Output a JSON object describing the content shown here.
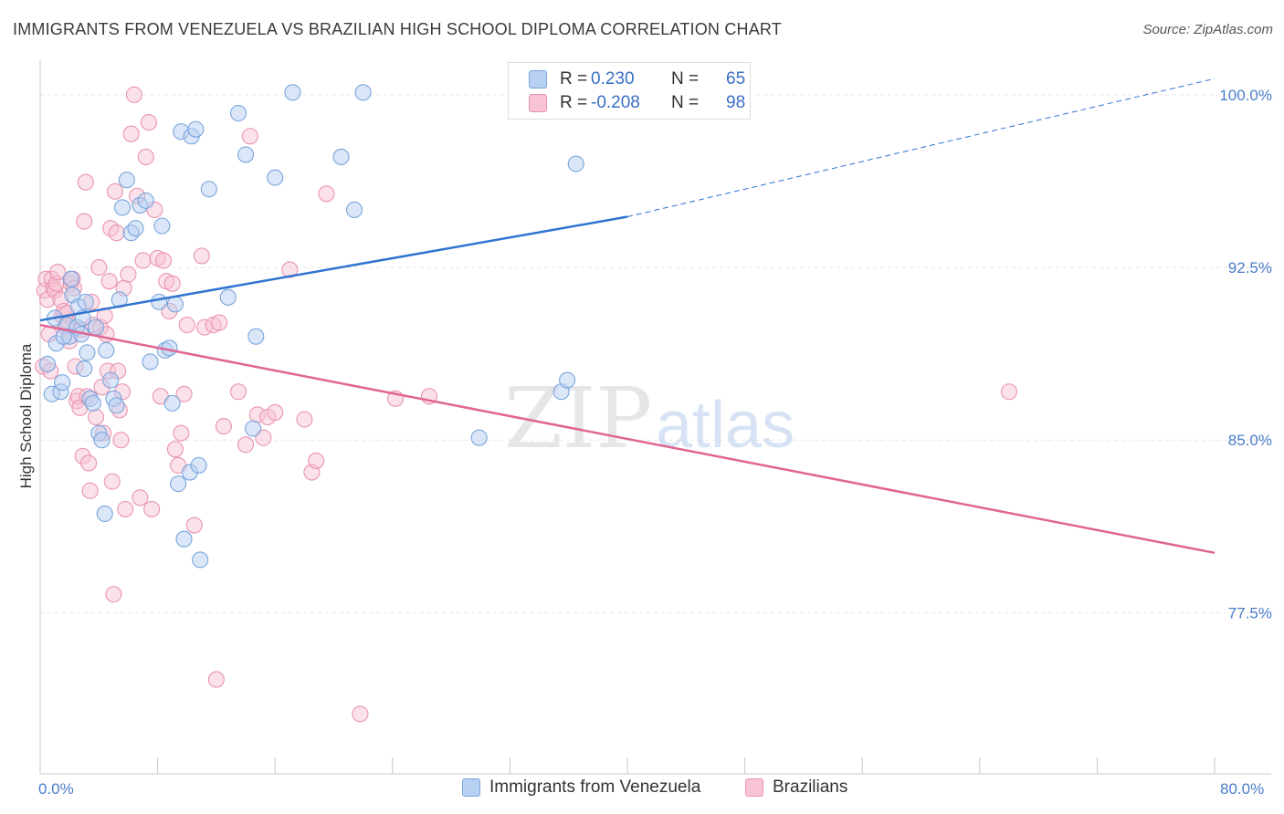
{
  "title": "IMMIGRANTS FROM VENEZUELA VS BRAZILIAN HIGH SCHOOL DIPLOMA CORRELATION CHART",
  "source": "Source: ZipAtlas.com",
  "watermark": {
    "zip": "ZIP",
    "atlas": "atlas"
  },
  "legend": {
    "r_label": "R =",
    "n_label": "N =",
    "series": [
      {
        "name": "Immigrants from Venezuela",
        "r": "0.230",
        "n": "65"
      },
      {
        "name": "Brazilians",
        "r": "-0.208",
        "n": "98"
      }
    ]
  },
  "colors": {
    "blue_fill": "#b8d0f2",
    "blue_stroke": "#7aa5dc",
    "blue_line": "#2f74d0",
    "pink_fill": "#f8c3d3",
    "pink_stroke": "#ea94b1",
    "pink_line": "#e06592",
    "axis_text": "#4a7cc9",
    "grid": "#e6e6e6"
  },
  "chart_data": {
    "type": "scatter",
    "title": "IMMIGRANTS FROM VENEZUELA VS BRAZILIAN HIGH SCHOOL DIPLOMA CORRELATION CHART",
    "xlabel": "",
    "ylabel": "High School Diploma",
    "xlim": [
      0,
      80
    ],
    "ylim": [
      70.5,
      101.5
    ],
    "x_tick_labels": [
      "0.0%",
      "80.0%"
    ],
    "y_ticks": [
      77.5,
      85.0,
      92.5,
      100.0
    ],
    "y_tick_labels": [
      "77.5%",
      "85.0%",
      "92.5%",
      "100.0%"
    ],
    "grid": true,
    "series": [
      {
        "name": "Immigrants from Venezuela",
        "r": 0.23,
        "n": 65,
        "trend": {
          "x0": 0,
          "y0": 90.2,
          "x1": 40,
          "y1": 94.7,
          "dashed_to_x": 80,
          "dashed_to_y": 100.7
        },
        "points": [
          [
            0.5,
            88.3
          ],
          [
            0.8,
            87.0
          ],
          [
            1.0,
            90.3
          ],
          [
            1.1,
            89.2
          ],
          [
            1.4,
            87.1
          ],
          [
            1.5,
            87.5
          ],
          [
            1.8,
            90.0
          ],
          [
            2.0,
            89.5
          ],
          [
            2.2,
            91.3
          ],
          [
            2.5,
            89.9
          ],
          [
            2.6,
            90.8
          ],
          [
            2.8,
            89.6
          ],
          [
            3.0,
            88.1
          ],
          [
            3.1,
            91.0
          ],
          [
            3.2,
            88.8
          ],
          [
            3.4,
            86.8
          ],
          [
            3.6,
            86.6
          ],
          [
            3.8,
            89.9
          ],
          [
            4.0,
            85.3
          ],
          [
            4.2,
            85.0
          ],
          [
            4.5,
            88.9
          ],
          [
            4.8,
            87.6
          ],
          [
            5.0,
            86.8
          ],
          [
            5.2,
            86.5
          ],
          [
            5.4,
            91.1
          ],
          [
            5.6,
            95.1
          ],
          [
            5.9,
            96.3
          ],
          [
            6.2,
            94.0
          ],
          [
            6.5,
            94.2
          ],
          [
            6.8,
            95.2
          ],
          [
            7.2,
            95.4
          ],
          [
            7.5,
            88.4
          ],
          [
            8.1,
            91.0
          ],
          [
            8.3,
            94.3
          ],
          [
            8.5,
            88.9
          ],
          [
            8.8,
            89.0
          ],
          [
            9.0,
            86.6
          ],
          [
            9.2,
            90.9
          ],
          [
            9.4,
            83.1
          ],
          [
            9.6,
            98.4
          ],
          [
            9.8,
            80.7
          ],
          [
            10.2,
            83.6
          ],
          [
            10.3,
            98.2
          ],
          [
            10.6,
            98.5
          ],
          [
            10.8,
            83.9
          ],
          [
            10.9,
            79.8
          ],
          [
            11.5,
            95.9
          ],
          [
            12.8,
            91.2
          ],
          [
            13.5,
            99.2
          ],
          [
            14.0,
            97.4
          ],
          [
            14.5,
            85.5
          ],
          [
            14.7,
            89.5
          ],
          [
            16.0,
            96.4
          ],
          [
            17.2,
            100.1
          ],
          [
            20.5,
            97.3
          ],
          [
            21.4,
            95.0
          ],
          [
            22.0,
            100.1
          ],
          [
            29.9,
            85.1
          ],
          [
            35.5,
            87.1
          ],
          [
            35.9,
            87.6
          ],
          [
            36.5,
            97.0
          ],
          [
            2.9,
            90.3
          ],
          [
            4.4,
            81.8
          ],
          [
            2.1,
            92.0
          ],
          [
            1.6,
            89.5
          ]
        ]
      },
      {
        "name": "Brazilians",
        "r": -0.208,
        "n": 98,
        "trend": {
          "x0": 0,
          "y0": 90.0,
          "x1": 80,
          "y1": 80.1
        },
        "points": [
          [
            0.2,
            88.2
          ],
          [
            0.3,
            91.5
          ],
          [
            0.4,
            92.0
          ],
          [
            0.5,
            91.1
          ],
          [
            0.6,
            89.6
          ],
          [
            0.7,
            88.0
          ],
          [
            0.8,
            92.0
          ],
          [
            0.9,
            91.6
          ],
          [
            1.0,
            91.5
          ],
          [
            1.1,
            91.8
          ],
          [
            1.2,
            92.3
          ],
          [
            1.4,
            91.1
          ],
          [
            1.5,
            90.4
          ],
          [
            1.6,
            90.6
          ],
          [
            1.7,
            89.9
          ],
          [
            1.8,
            90.5
          ],
          [
            1.9,
            90.1
          ],
          [
            2.0,
            89.3
          ],
          [
            2.1,
            91.8
          ],
          [
            2.2,
            92.0
          ],
          [
            2.3,
            91.6
          ],
          [
            2.4,
            88.2
          ],
          [
            2.5,
            86.7
          ],
          [
            2.6,
            86.9
          ],
          [
            2.7,
            86.4
          ],
          [
            2.8,
            89.8
          ],
          [
            2.9,
            84.3
          ],
          [
            3.0,
            94.5
          ],
          [
            3.1,
            96.2
          ],
          [
            3.2,
            86.9
          ],
          [
            3.3,
            84.0
          ],
          [
            3.4,
            82.8
          ],
          [
            3.5,
            91.0
          ],
          [
            3.6,
            90.0
          ],
          [
            3.8,
            86.0
          ],
          [
            4.0,
            92.5
          ],
          [
            4.1,
            89.9
          ],
          [
            4.2,
            87.3
          ],
          [
            4.3,
            85.3
          ],
          [
            4.4,
            90.4
          ],
          [
            4.5,
            89.6
          ],
          [
            4.6,
            88.0
          ],
          [
            4.7,
            91.9
          ],
          [
            4.8,
            94.2
          ],
          [
            4.9,
            83.2
          ],
          [
            5.0,
            78.3
          ],
          [
            5.1,
            95.8
          ],
          [
            5.2,
            94.0
          ],
          [
            5.3,
            88.0
          ],
          [
            5.4,
            86.3
          ],
          [
            5.5,
            85.0
          ],
          [
            5.6,
            87.1
          ],
          [
            5.7,
            91.6
          ],
          [
            5.8,
            82.0
          ],
          [
            6.0,
            92.2
          ],
          [
            6.2,
            98.3
          ],
          [
            6.4,
            100.0
          ],
          [
            6.6,
            95.6
          ],
          [
            6.8,
            82.5
          ],
          [
            7.0,
            92.8
          ],
          [
            7.2,
            97.3
          ],
          [
            7.4,
            98.8
          ],
          [
            7.6,
            82.0
          ],
          [
            7.8,
            95.0
          ],
          [
            8.0,
            92.9
          ],
          [
            8.2,
            86.9
          ],
          [
            8.4,
            92.8
          ],
          [
            8.6,
            91.9
          ],
          [
            8.8,
            90.6
          ],
          [
            9.0,
            91.8
          ],
          [
            9.2,
            84.6
          ],
          [
            9.4,
            83.9
          ],
          [
            9.6,
            85.3
          ],
          [
            9.8,
            87.0
          ],
          [
            10.0,
            90.0
          ],
          [
            10.5,
            81.3
          ],
          [
            11.0,
            93.0
          ],
          [
            11.2,
            89.9
          ],
          [
            11.8,
            90.0
          ],
          [
            12.0,
            74.6
          ],
          [
            12.2,
            90.1
          ],
          [
            12.5,
            85.6
          ],
          [
            13.5,
            87.1
          ],
          [
            14.0,
            84.8
          ],
          [
            14.3,
            98.2
          ],
          [
            14.8,
            86.1
          ],
          [
            15.2,
            85.1
          ],
          [
            15.5,
            86.0
          ],
          [
            16.0,
            86.2
          ],
          [
            17.0,
            92.4
          ],
          [
            18.0,
            85.9
          ],
          [
            18.5,
            83.6
          ],
          [
            18.8,
            84.1
          ],
          [
            19.5,
            95.7
          ],
          [
            21.8,
            73.1
          ],
          [
            24.2,
            86.8
          ],
          [
            26.5,
            86.9
          ],
          [
            66.0,
            87.1
          ]
        ]
      }
    ]
  }
}
